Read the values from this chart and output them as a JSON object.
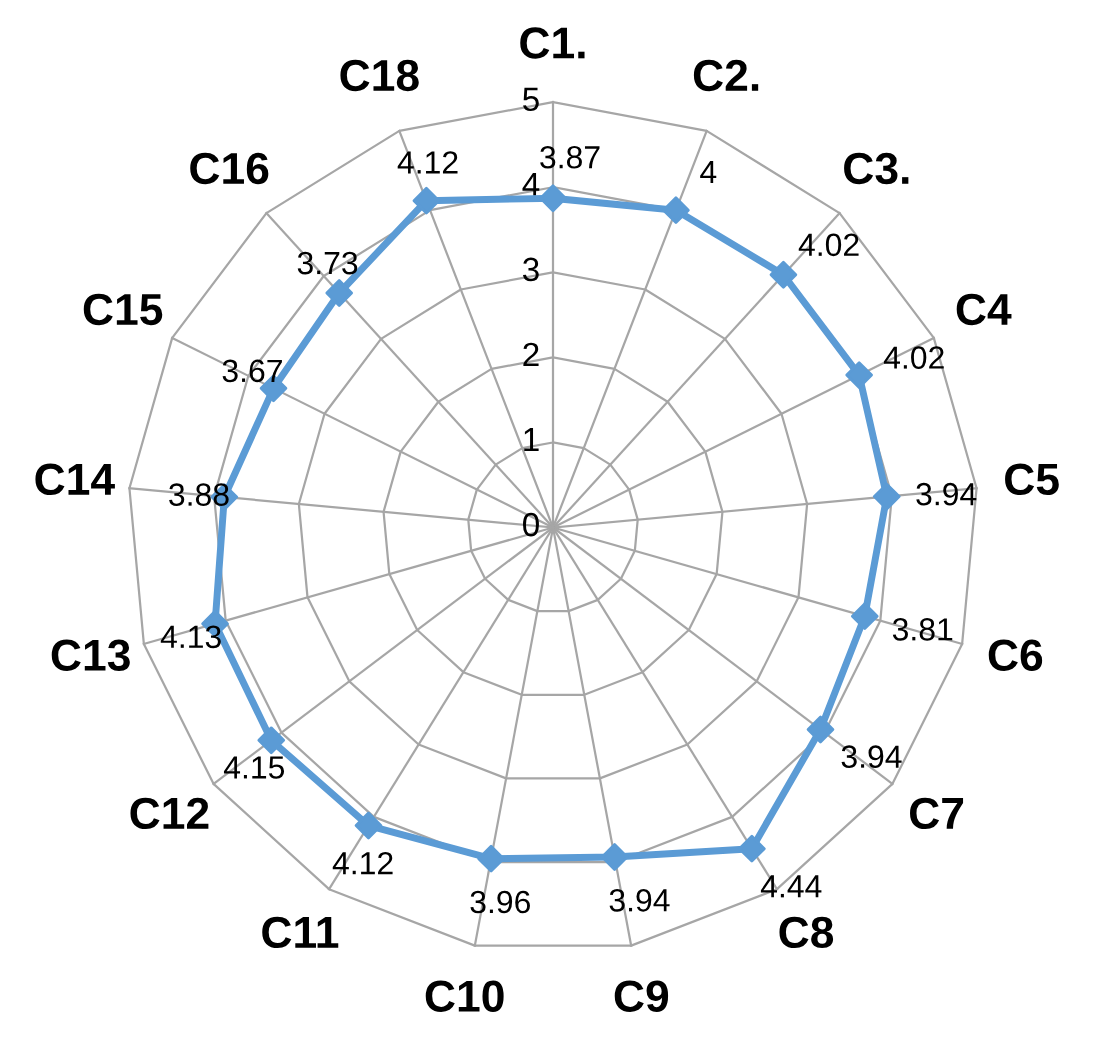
{
  "chart_data": {
    "type": "radar",
    "categories": [
      "C1.",
      "C2.",
      "C3.",
      "C4",
      "C5",
      "C6",
      "C7",
      "C8",
      "C9",
      "C10",
      "C11",
      "C12",
      "C13",
      "C14",
      "C15",
      "C16",
      "C18"
    ],
    "series": [
      {
        "color": "#5b9bd5",
        "values": [
          3.87,
          4,
          4.02,
          4.02,
          3.94,
          3.81,
          3.94,
          4.44,
          3.94,
          3.96,
          4.12,
          4.15,
          4.13,
          3.88,
          3.67,
          3.73,
          4.12
        ]
      }
    ],
    "ylim": [
      0,
      5
    ],
    "yticks": [
      0,
      1,
      2,
      3,
      4,
      5
    ],
    "marker": "diamond",
    "data_labels": true,
    "grid": true
  }
}
